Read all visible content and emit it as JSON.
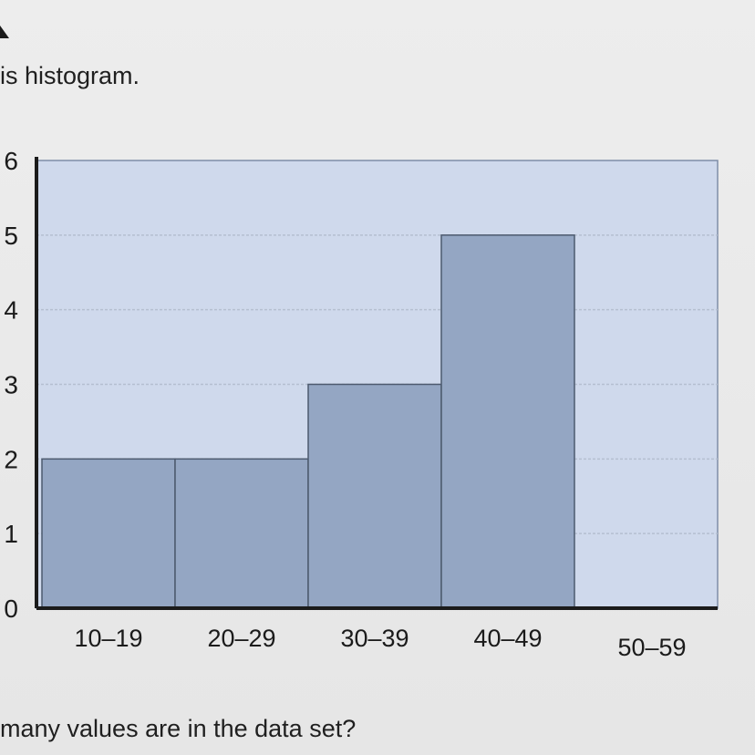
{
  "question": {
    "prompt": "is histogram.",
    "footer": "many values are in the data set?"
  },
  "colors": {
    "plot_background": "#cfd9ec",
    "bar_fill": "#94a6c3",
    "bar_stroke": "#4d5a6e",
    "axis": "#1b1b1b",
    "grid": "#b5bfd0"
  },
  "chart_data": {
    "type": "bar",
    "categories": [
      "10–19",
      "20–29",
      "30–39",
      "40–49",
      "50–59"
    ],
    "values": [
      2,
      2,
      3,
      5,
      0
    ],
    "title": "",
    "xlabel": "",
    "ylabel": "",
    "ylim": [
      0,
      6
    ],
    "yticks": [
      0,
      1,
      2,
      3,
      4,
      5,
      6
    ],
    "grid": true,
    "legend": "none"
  }
}
